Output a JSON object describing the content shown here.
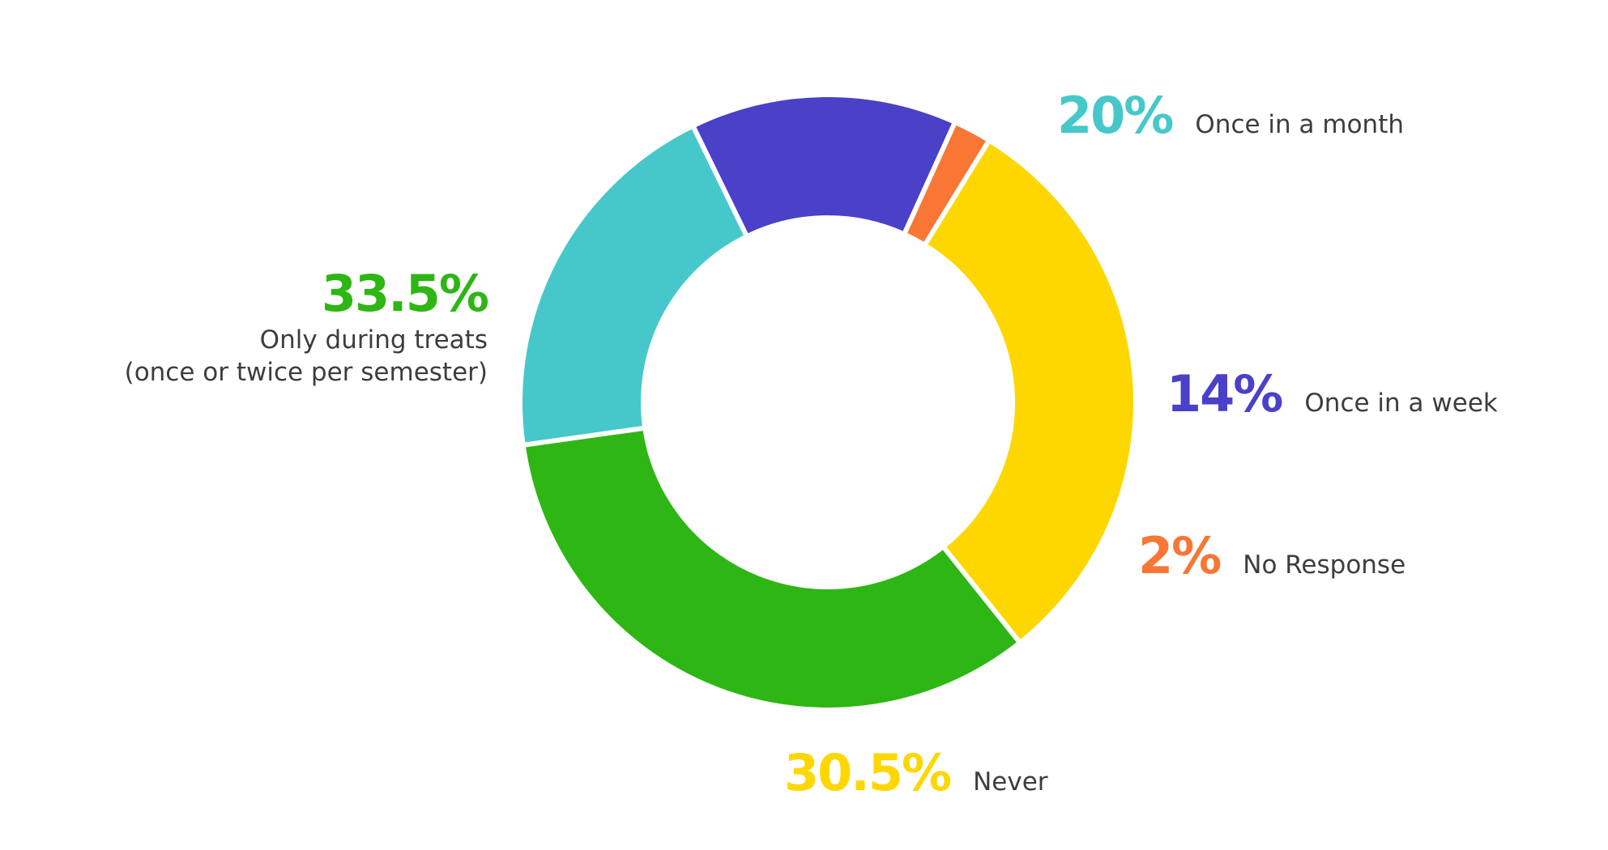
{
  "chart_data": {
    "type": "pie",
    "donut": true,
    "slices": [
      {
        "label": "Once in a month",
        "value": 20,
        "value_label": "20%",
        "color": "#46c8ca"
      },
      {
        "label": "Once in a week",
        "value": 14,
        "value_label": "14%",
        "color": "#4b40c8"
      },
      {
        "label": "No Response",
        "value": 2,
        "value_label": "2%",
        "color": "#f97634"
      },
      {
        "label": "Never",
        "value": 30.5,
        "value_label": "30.5%",
        "color": "#fed700"
      },
      {
        "label": "Only during treats",
        "sublabel": "(once or twice per semester)",
        "value": 33.5,
        "value_label": "33.5%",
        "color": "#2eb614"
      }
    ]
  }
}
